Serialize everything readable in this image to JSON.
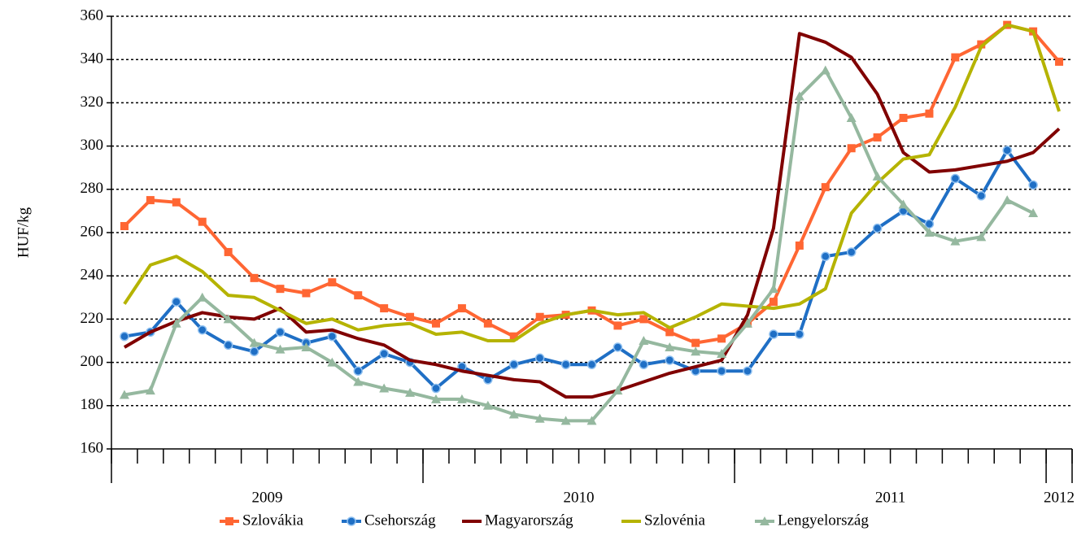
{
  "chart_data": {
    "type": "line",
    "y_label": "HUF/kg",
    "ylim": [
      160,
      360
    ],
    "yticks": [
      160,
      180,
      200,
      220,
      240,
      260,
      280,
      300,
      320,
      340,
      360
    ],
    "grid": true,
    "legend": "bottom",
    "year_groups": [
      {
        "label": "2009",
        "count": 12
      },
      {
        "label": "2010",
        "count": 12
      },
      {
        "label": "2011",
        "count": 12
      },
      {
        "label": "2012",
        "count": 1
      }
    ],
    "series": [
      {
        "name": "Szlovákia",
        "color": "#ff6633",
        "marker": "square",
        "values": [
          263,
          275,
          274,
          265,
          251,
          239,
          234,
          232,
          237,
          231,
          225,
          221,
          218,
          225,
          218,
          212,
          221,
          222,
          224,
          217,
          220,
          214,
          209,
          211,
          218,
          228,
          254,
          281,
          299,
          304,
          313,
          315,
          341,
          347,
          356,
          353,
          339
        ]
      },
      {
        "name": "Csehország",
        "color": "#1f6fc5",
        "marker": "circle",
        "values": [
          212,
          214,
          228,
          215,
          208,
          205,
          214,
          209,
          212,
          196,
          204,
          200,
          188,
          198,
          192,
          199,
          202,
          199,
          199,
          207,
          199,
          201,
          196,
          196,
          196,
          213,
          213,
          249,
          251,
          262,
          270,
          264,
          285,
          277,
          298,
          282,
          null
        ]
      },
      {
        "name": "Magyarország",
        "color": "#800000",
        "marker": "none",
        "values": [
          207,
          214,
          219,
          223,
          221,
          220,
          225,
          214,
          215,
          211,
          208,
          201,
          199,
          196,
          194,
          192,
          191,
          184,
          184,
          187,
          191,
          195,
          198,
          201,
          222,
          262,
          352,
          348,
          341,
          324,
          297,
          288,
          289,
          291,
          293,
          297,
          308
        ]
      },
      {
        "name": "Szlovénia",
        "color": "#b5b300",
        "marker": "none",
        "values": [
          227,
          245,
          249,
          242,
          231,
          230,
          224,
          218,
          220,
          215,
          217,
          218,
          213,
          214,
          210,
          210,
          218,
          222,
          224,
          222,
          223,
          216,
          221,
          227,
          226,
          225,
          227,
          234,
          269,
          283,
          294,
          296,
          318,
          346,
          356,
          353,
          316
        ]
      },
      {
        "name": "Lengyelország",
        "color": "#95b89f",
        "marker": "triangle",
        "values": [
          185,
          187,
          218,
          230,
          220,
          209,
          206,
          207,
          200,
          191,
          188,
          186,
          183,
          183,
          180,
          176,
          174,
          173,
          173,
          187,
          210,
          207,
          205,
          204,
          218,
          234,
          323,
          335,
          313,
          286,
          273,
          260,
          256,
          258,
          275,
          269,
          null
        ]
      }
    ]
  }
}
